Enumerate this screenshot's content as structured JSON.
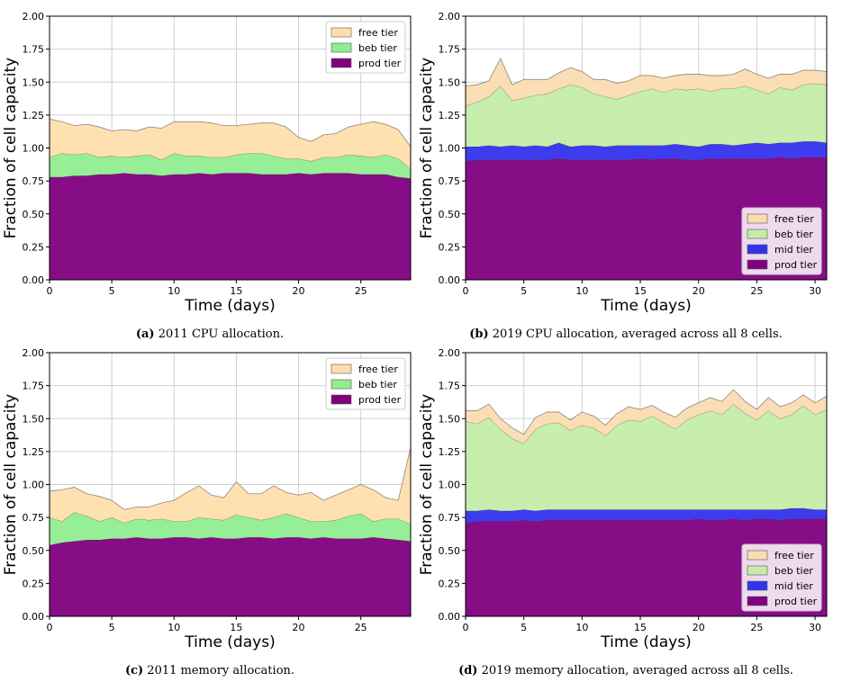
{
  "chart_data": [
    {
      "type": "area",
      "id": "a",
      "caption_label": "(a)",
      "caption_text": " 2011 CPU allocation.",
      "xlabel": "Time (days)",
      "ylabel": "Fraction of cell capacity",
      "xlim": [
        0,
        29
      ],
      "ylim": [
        0,
        2
      ],
      "xticks": [
        0,
        5,
        10,
        15,
        20,
        25
      ],
      "yticks": [
        0,
        0.25,
        0.5,
        0.75,
        1.0,
        1.25,
        1.5,
        1.75,
        2.0
      ],
      "grid": true,
      "stacked": true,
      "legend_position": "top-right",
      "x": [
        0,
        1,
        2,
        3,
        4,
        5,
        6,
        7,
        8,
        9,
        10,
        11,
        12,
        13,
        14,
        15,
        16,
        17,
        18,
        19,
        20,
        21,
        22,
        23,
        24,
        25,
        26,
        27,
        28,
        29
      ],
      "series": [
        {
          "name": "prod tier",
          "color": "#800080",
          "values": [
            0.78,
            0.78,
            0.79,
            0.79,
            0.8,
            0.8,
            0.81,
            0.8,
            0.8,
            0.79,
            0.8,
            0.8,
            0.81,
            0.8,
            0.81,
            0.81,
            0.81,
            0.8,
            0.8,
            0.8,
            0.81,
            0.8,
            0.81,
            0.81,
            0.81,
            0.8,
            0.8,
            0.8,
            0.78,
            0.77
          ]
        },
        {
          "name": "beb tier",
          "color": "#90ee90",
          "values": [
            0.15,
            0.18,
            0.16,
            0.17,
            0.13,
            0.14,
            0.12,
            0.14,
            0.15,
            0.12,
            0.16,
            0.14,
            0.13,
            0.13,
            0.12,
            0.14,
            0.15,
            0.16,
            0.14,
            0.12,
            0.11,
            0.1,
            0.12,
            0.12,
            0.14,
            0.14,
            0.13,
            0.15,
            0.14,
            0.07
          ]
        },
        {
          "name": "free tier",
          "color": "#ffdead",
          "values": [
            0.29,
            0.24,
            0.22,
            0.22,
            0.23,
            0.19,
            0.21,
            0.19,
            0.21,
            0.24,
            0.24,
            0.26,
            0.26,
            0.26,
            0.24,
            0.22,
            0.22,
            0.23,
            0.25,
            0.24,
            0.16,
            0.15,
            0.17,
            0.18,
            0.21,
            0.24,
            0.27,
            0.23,
            0.22,
            0.17
          ]
        }
      ],
      "legend": [
        {
          "label": "free tier",
          "color": "#ffdead"
        },
        {
          "label": "beb tier",
          "color": "#90ee90"
        },
        {
          "label": "prod tier",
          "color": "#800080"
        }
      ]
    },
    {
      "type": "area",
      "id": "b",
      "caption_label": "(b)",
      "caption_text": " 2019 CPU allocation, averaged across all 8 cells.",
      "xlabel": "Time (days)",
      "ylabel": "Fraction of cell capacity",
      "xlim": [
        0,
        31
      ],
      "ylim": [
        0,
        2
      ],
      "xticks": [
        0,
        5,
        10,
        15,
        20,
        25,
        30
      ],
      "yticks": [
        0,
        0.25,
        0.5,
        0.75,
        1.0,
        1.25,
        1.5,
        1.75,
        2.0
      ],
      "grid": true,
      "stacked": true,
      "legend_position": "lower-right",
      "x": [
        0,
        1,
        2,
        3,
        4,
        5,
        6,
        7,
        8,
        9,
        10,
        11,
        12,
        13,
        14,
        15,
        16,
        17,
        18,
        19,
        20,
        21,
        22,
        23,
        24,
        25,
        26,
        27,
        28,
        29,
        30,
        31
      ],
      "series": [
        {
          "name": "prod tier",
          "color": "#800080",
          "values": [
            0.9,
            0.91,
            0.91,
            0.91,
            0.91,
            0.91,
            0.91,
            0.91,
            0.92,
            0.91,
            0.91,
            0.91,
            0.91,
            0.91,
            0.91,
            0.92,
            0.91,
            0.92,
            0.92,
            0.91,
            0.91,
            0.92,
            0.92,
            0.92,
            0.92,
            0.92,
            0.92,
            0.93,
            0.92,
            0.93,
            0.93,
            0.93
          ]
        },
        {
          "name": "mid tier",
          "color": "#3333ee",
          "values": [
            0.11,
            0.1,
            0.11,
            0.1,
            0.11,
            0.1,
            0.11,
            0.1,
            0.12,
            0.1,
            0.11,
            0.11,
            0.1,
            0.11,
            0.11,
            0.1,
            0.11,
            0.1,
            0.11,
            0.11,
            0.1,
            0.11,
            0.11,
            0.1,
            0.11,
            0.12,
            0.11,
            0.11,
            0.12,
            0.12,
            0.12,
            0.11
          ]
        },
        {
          "name": "beb tier",
          "color": "#c5eda9",
          "values": [
            0.31,
            0.34,
            0.37,
            0.46,
            0.34,
            0.37,
            0.38,
            0.4,
            0.41,
            0.47,
            0.44,
            0.39,
            0.38,
            0.35,
            0.38,
            0.41,
            0.43,
            0.4,
            0.42,
            0.42,
            0.44,
            0.4,
            0.42,
            0.43,
            0.44,
            0.4,
            0.38,
            0.42,
            0.4,
            0.43,
            0.44,
            0.44
          ]
        },
        {
          "name": "free tier",
          "color": "#fbdcb1",
          "values": [
            0.15,
            0.13,
            0.12,
            0.21,
            0.12,
            0.14,
            0.12,
            0.11,
            0.12,
            0.13,
            0.12,
            0.11,
            0.13,
            0.12,
            0.11,
            0.12,
            0.1,
            0.11,
            0.1,
            0.12,
            0.11,
            0.12,
            0.1,
            0.11,
            0.13,
            0.12,
            0.12,
            0.1,
            0.12,
            0.11,
            0.1,
            0.1
          ]
        }
      ],
      "legend": [
        {
          "label": "free tier",
          "color": "#fbdcb1"
        },
        {
          "label": "beb tier",
          "color": "#c5eda9"
        },
        {
          "label": "mid tier",
          "color": "#3333ee"
        },
        {
          "label": "prod tier",
          "color": "#800080"
        }
      ]
    },
    {
      "type": "area",
      "id": "c",
      "caption_label": "(c)",
      "caption_text": " 2011 memory allocation.",
      "xlabel": "Time (days)",
      "ylabel": "Fraction of cell capacity",
      "xlim": [
        0,
        29
      ],
      "ylim": [
        0,
        2
      ],
      "xticks": [
        0,
        5,
        10,
        15,
        20,
        25
      ],
      "yticks": [
        0,
        0.25,
        0.5,
        0.75,
        1.0,
        1.25,
        1.5,
        1.75,
        2.0
      ],
      "grid": true,
      "stacked": true,
      "legend_position": "top-right",
      "x": [
        0,
        1,
        2,
        3,
        4,
        5,
        6,
        7,
        8,
        9,
        10,
        11,
        12,
        13,
        14,
        15,
        16,
        17,
        18,
        19,
        20,
        21,
        22,
        23,
        24,
        25,
        26,
        27,
        28,
        29
      ],
      "series": [
        {
          "name": "prod tier",
          "color": "#800080",
          "values": [
            0.54,
            0.56,
            0.57,
            0.58,
            0.58,
            0.59,
            0.59,
            0.6,
            0.59,
            0.59,
            0.6,
            0.6,
            0.59,
            0.6,
            0.59,
            0.59,
            0.6,
            0.6,
            0.59,
            0.6,
            0.6,
            0.59,
            0.6,
            0.59,
            0.59,
            0.59,
            0.6,
            0.59,
            0.58,
            0.57
          ]
        },
        {
          "name": "beb tier",
          "color": "#90ee90",
          "values": [
            0.21,
            0.16,
            0.22,
            0.18,
            0.14,
            0.16,
            0.12,
            0.14,
            0.14,
            0.15,
            0.12,
            0.12,
            0.16,
            0.14,
            0.14,
            0.18,
            0.15,
            0.13,
            0.16,
            0.18,
            0.15,
            0.13,
            0.12,
            0.14,
            0.17,
            0.19,
            0.12,
            0.15,
            0.16,
            0.13
          ]
        },
        {
          "name": "free tier",
          "color": "#ffdead",
          "values": [
            0.2,
            0.24,
            0.19,
            0.17,
            0.19,
            0.13,
            0.1,
            0.09,
            0.1,
            0.12,
            0.16,
            0.22,
            0.24,
            0.18,
            0.17,
            0.25,
            0.18,
            0.2,
            0.24,
            0.16,
            0.17,
            0.22,
            0.16,
            0.19,
            0.2,
            0.22,
            0.24,
            0.16,
            0.14,
            0.58
          ]
        }
      ],
      "legend": [
        {
          "label": "free tier",
          "color": "#ffdead"
        },
        {
          "label": "beb tier",
          "color": "#90ee90"
        },
        {
          "label": "prod tier",
          "color": "#800080"
        }
      ]
    },
    {
      "type": "area",
      "id": "d",
      "caption_label": "(d)",
      "caption_text": " 2019 memory allocation, averaged across all 8 cells.",
      "xlabel": "Time (days)",
      "ylabel": "Fraction of cell capacity",
      "xlim": [
        0,
        31
      ],
      "ylim": [
        0,
        2
      ],
      "xticks": [
        0,
        5,
        10,
        15,
        20,
        25,
        30
      ],
      "yticks": [
        0,
        0.25,
        0.5,
        0.75,
        1.0,
        1.25,
        1.5,
        1.75,
        2.0
      ],
      "grid": true,
      "stacked": true,
      "legend_position": "lower-right",
      "x": [
        0,
        1,
        2,
        3,
        4,
        5,
        6,
        7,
        8,
        9,
        10,
        11,
        12,
        13,
        14,
        15,
        16,
        17,
        18,
        19,
        20,
        21,
        22,
        23,
        24,
        25,
        26,
        27,
        28,
        29,
        30,
        31
      ],
      "series": [
        {
          "name": "prod tier",
          "color": "#800080",
          "values": [
            0.71,
            0.72,
            0.72,
            0.72,
            0.72,
            0.73,
            0.72,
            0.73,
            0.73,
            0.73,
            0.73,
            0.73,
            0.73,
            0.73,
            0.73,
            0.73,
            0.73,
            0.73,
            0.73,
            0.73,
            0.74,
            0.73,
            0.73,
            0.74,
            0.73,
            0.74,
            0.74,
            0.73,
            0.74,
            0.74,
            0.74,
            0.74
          ]
        },
        {
          "name": "mid tier",
          "color": "#3333ee",
          "values": [
            0.09,
            0.08,
            0.09,
            0.08,
            0.08,
            0.08,
            0.08,
            0.08,
            0.08,
            0.08,
            0.08,
            0.08,
            0.08,
            0.08,
            0.08,
            0.08,
            0.08,
            0.08,
            0.08,
            0.08,
            0.07,
            0.08,
            0.08,
            0.07,
            0.08,
            0.07,
            0.07,
            0.08,
            0.08,
            0.08,
            0.07,
            0.07
          ]
        },
        {
          "name": "beb tier",
          "color": "#c5eda9",
          "values": [
            0.68,
            0.66,
            0.7,
            0.62,
            0.55,
            0.5,
            0.62,
            0.65,
            0.66,
            0.6,
            0.64,
            0.62,
            0.56,
            0.64,
            0.68,
            0.67,
            0.71,
            0.66,
            0.61,
            0.68,
            0.72,
            0.75,
            0.72,
            0.8,
            0.73,
            0.68,
            0.75,
            0.69,
            0.71,
            0.78,
            0.72,
            0.76
          ]
        },
        {
          "name": "free tier",
          "color": "#fbdcb1",
          "values": [
            0.08,
            0.1,
            0.1,
            0.08,
            0.08,
            0.07,
            0.09,
            0.09,
            0.08,
            0.08,
            0.1,
            0.09,
            0.08,
            0.09,
            0.1,
            0.09,
            0.08,
            0.08,
            0.09,
            0.09,
            0.09,
            0.1,
            0.1,
            0.11,
            0.09,
            0.08,
            0.1,
            0.09,
            0.09,
            0.08,
            0.09,
            0.1
          ]
        }
      ],
      "legend": [
        {
          "label": "free tier",
          "color": "#fbdcb1"
        },
        {
          "label": "beb tier",
          "color": "#c5eda9"
        },
        {
          "label": "mid tier",
          "color": "#3333ee"
        },
        {
          "label": "prod tier",
          "color": "#800080"
        }
      ]
    }
  ]
}
